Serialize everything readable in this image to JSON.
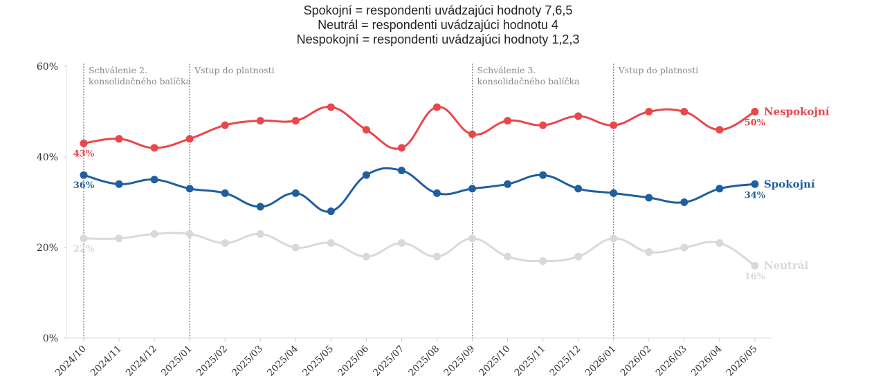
{
  "chart_data": {
    "type": "line",
    "title_lines": [
      "Spokojní = respondenti uvádzajúci hodnoty 7,6,5",
      "Neutrál = respondenti uvádzajúci hodnotu 4",
      "Nespokojní = respondenti uvádzajúci hodnoty 1,2,3"
    ],
    "x": [
      "2024/10",
      "2024/11",
      "2024/12",
      "2025/01",
      "2025/02",
      "2025/03",
      "2025/04",
      "2025/05",
      "2025/06",
      "2025/07",
      "2025/08",
      "2025/09",
      "2025/10",
      "2025/11",
      "2025/12",
      "2026/01",
      "2026/02",
      "2026/03",
      "2026/04",
      "2026/05"
    ],
    "ylim": [
      0,
      60
    ],
    "yticks": [
      0,
      20,
      40,
      60
    ],
    "ytick_labels": [
      "0%",
      "20%",
      "40%",
      "60%"
    ],
    "grid": false,
    "series": [
      {
        "name": "Nespokojní",
        "color": "#e8474c",
        "values": [
          43,
          44,
          42,
          44,
          47,
          48,
          48,
          51,
          46,
          42,
          51,
          45,
          48,
          47,
          49,
          47,
          50,
          50,
          46,
          50
        ],
        "first_label": "43%",
        "last_label": "50%"
      },
      {
        "name": "Spokojní",
        "color": "#1f5f9f",
        "values": [
          36,
          34,
          35,
          33,
          32,
          29,
          32,
          28,
          36,
          37,
          32,
          33,
          34,
          36,
          33,
          32,
          31,
          30,
          33,
          34
        ],
        "first_label": "36%",
        "last_label": "34%"
      },
      {
        "name": "Neutrál",
        "color": "#d9d9d9",
        "values": [
          22,
          22,
          23,
          23,
          21,
          23,
          20,
          21,
          18,
          21,
          18,
          22,
          18,
          17,
          18,
          22,
          19,
          20,
          21,
          16
        ],
        "first_label": "22%",
        "last_label": "16%"
      }
    ],
    "annotations": [
      {
        "x": "2024/10",
        "lines": [
          "Schválenie 2.",
          "konsolidačného balíčka"
        ]
      },
      {
        "x": "2025/01",
        "lines": [
          "Vstup do platnosti"
        ]
      },
      {
        "x": "2025/09",
        "lines": [
          "Schválenie 3.",
          "konsolidačného balíčka"
        ]
      },
      {
        "x": "2026/01",
        "lines": [
          "Vstup do platnosti"
        ]
      }
    ]
  }
}
